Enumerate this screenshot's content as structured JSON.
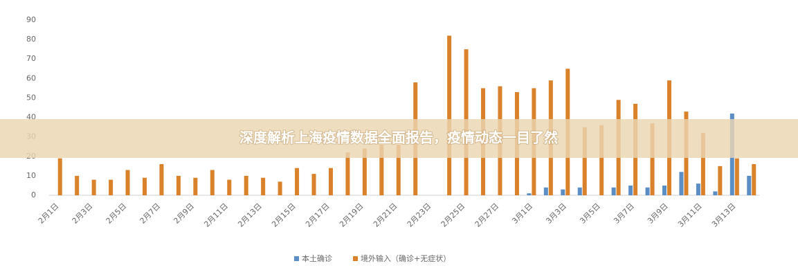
{
  "banner": "深度解析上海疫情数据全面报告，疫情动态一目了然",
  "chart_data": {
    "type": "bar",
    "categories": [
      "2月1日",
      null,
      "2月3日",
      null,
      "2月5日",
      null,
      "2月7日",
      null,
      "2月9日",
      null,
      "2月11日",
      null,
      "2月13日",
      null,
      "2月15日",
      null,
      "2月17日",
      null,
      "2月19日",
      null,
      "2月21日",
      null,
      "2月23日",
      null,
      "2月25日",
      null,
      "2月27日",
      null,
      "3月1日",
      null,
      "3月3日",
      null,
      "3月5日",
      null,
      "3月7日",
      null,
      "3月9日",
      null,
      "3月11日",
      null,
      "3月13日",
      null
    ],
    "series": [
      {
        "name": "本土确诊",
        "color": "#5b8ec4",
        "values": [
          0,
          0,
          0,
          0,
          0,
          0,
          0,
          0,
          0,
          0,
          0,
          0,
          0,
          0,
          0,
          0,
          0,
          0,
          0,
          0,
          0,
          0,
          0,
          0,
          0,
          0,
          0,
          0,
          1,
          4,
          3,
          4,
          0,
          4,
          5,
          4,
          5,
          12,
          6,
          2,
          42,
          10
        ]
      },
      {
        "name": "境外输入（确诊+无症状）",
        "color": "#d9822b",
        "values": [
          19,
          10,
          8,
          8,
          13,
          9,
          16,
          10,
          9,
          13,
          8,
          10,
          9,
          7,
          14,
          11,
          14,
          22,
          24,
          26,
          26,
          58,
          0,
          82,
          75,
          55,
          56,
          53,
          55,
          59,
          65,
          35,
          36,
          49,
          47,
          37,
          59,
          43,
          32,
          15,
          19,
          16
        ]
      }
    ],
    "ylim": [
      0,
      90
    ],
    "yticks": [
      0,
      10,
      20,
      30,
      40,
      50,
      60,
      70,
      80,
      90
    ]
  }
}
